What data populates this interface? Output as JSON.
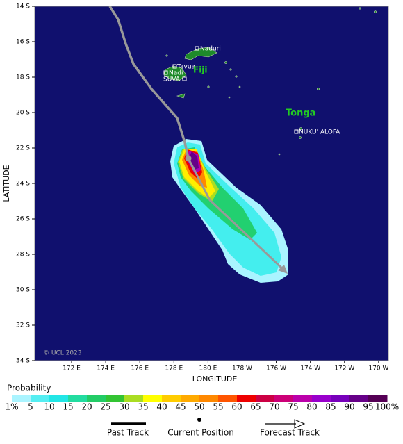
{
  "map": {
    "y_labels": [
      "14 S",
      "16 S",
      "18 S",
      "20 S",
      "22 S",
      "24 S",
      "26 S",
      "28 S",
      "30 S",
      "32 S",
      "34 S"
    ],
    "x_labels": [
      "172 E",
      "174 E",
      "176 E",
      "178 E",
      "180 E",
      "178 W",
      "176 W",
      "174 W",
      "172 W",
      "170 W"
    ],
    "y_title": "LATITUDE",
    "x_title": "LONGITUDE",
    "places": {
      "naduri": "Naduri",
      "tavua": "Tavua",
      "nadi": "Nadi",
      "suva": "SUVA",
      "fiji": "Fiji",
      "tonga": "Tonga",
      "nukualofa": "NUKU' ALOFA"
    },
    "copyright": "© UCL 2023"
  },
  "legend": {
    "title": "Probability",
    "colors": [
      "#aaf4ff",
      "#55eef2",
      "#22e6e6",
      "#22dca0",
      "#22cc66",
      "#33c433",
      "#aadd22",
      "#ffff00",
      "#ffcc00",
      "#ffaa00",
      "#ff8800",
      "#ff5500",
      "#ee0000",
      "#cc0044",
      "#cc0077",
      "#bb00aa",
      "#9900cc",
      "#7700bb",
      "#660088",
      "#550055"
    ],
    "labels": [
      "1%",
      "5",
      "10",
      "15",
      "20",
      "25",
      "30",
      "35",
      "40",
      "45",
      "50",
      "55",
      "60",
      "65",
      "70",
      "75",
      "80",
      "85",
      "90",
      "95",
      "100%"
    ],
    "keys": [
      "Past Track",
      "Current Position",
      "Forecast Track"
    ]
  }
}
